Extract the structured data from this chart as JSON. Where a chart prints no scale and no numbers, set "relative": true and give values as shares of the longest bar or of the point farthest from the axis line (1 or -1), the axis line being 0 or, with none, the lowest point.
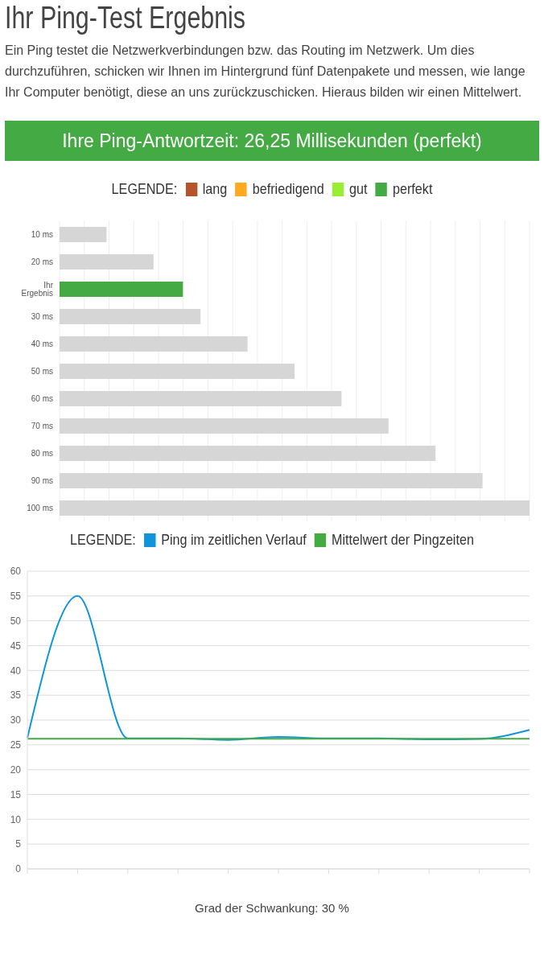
{
  "chart_data": [
    {
      "type": "bar",
      "title": "Ihr Ping-Test Ergebnis",
      "subtitle": "Ein Ping testet die Netzwerkverbindungen bzw. das Routing im Netzwerk. Um dies durchzuführen, schicken wir Ihnen im Hintergrund fünf Datenpakete und messen, wie lange Ihr Computer benötigt, diese an uns zurückzuschicken. Hieraus bilden wir einen Mittelwert.",
      "annotations": [
        "Ihre Ping-Antwortzeit: 26,25 Millisekunden (perfekt)"
      ],
      "orientation": "horizontal",
      "relative": true,
      "stacked": true,
      "grid": "x",
      "legend": "top",
      "legend_title": "LEGENDE:",
      "categories": [
        "10 ms",
        "20 ms",
        "Ihr Ergebnis",
        "30 ms",
        "40 ms",
        "50 ms",
        "60 ms",
        "70 ms",
        "80 ms",
        "90 ms",
        "100 ms"
      ],
      "series": [
        {
          "color": "#d6d6d6",
          "values": [
            0.1,
            0.2,
            null,
            0.3,
            0.4,
            0.5,
            0.6,
            0.7,
            0.8,
            0.9,
            1
          ]
        },
        {
          "name": "lang",
          "color": "#b5532a",
          "values": [
            null,
            null,
            null,
            null,
            null,
            null,
            null,
            null,
            null,
            null,
            null
          ]
        },
        {
          "name": "befriedigend",
          "color": "#ffaa22",
          "values": [
            null,
            null,
            null,
            null,
            null,
            null,
            null,
            null,
            null,
            null,
            null
          ]
        },
        {
          "name": "gut",
          "color": "#99ee33",
          "values": [
            null,
            null,
            null,
            null,
            null,
            null,
            null,
            null,
            null,
            null,
            null
          ]
        },
        {
          "name": "perfekt",
          "color": "#44aa44",
          "values": [
            null,
            null,
            0.2625,
            null,
            null,
            null,
            null,
            null,
            null,
            null,
            null
          ]
        }
      ]
    },
    {
      "type": "line",
      "legend": "top",
      "legend_title": "LEGENDE:",
      "grid": "y",
      "marker": "none",
      "line_style": "solid",
      "annotations": [
        "Grad der Schwankung: 30 %"
      ],
      "categories": [
        null,
        null,
        null,
        null,
        null,
        null,
        null,
        null,
        null,
        null,
        null
      ],
      "ylim": [
        0,
        60
      ],
      "yticks": [
        0,
        5,
        10,
        15,
        20,
        25,
        30,
        35,
        40,
        45,
        50,
        55,
        60
      ],
      "series": [
        {
          "name": "Ping im zeitlichen Verlauf",
          "color": "#0f95d9",
          "values": [
            26.4,
            55,
            26.3,
            26.3,
            26.0,
            26.6,
            26.3,
            26.3,
            26.1,
            26.2,
            28
          ]
        },
        {
          "name": "Mittelwert der Pingzeiten",
          "color": "#44aa44",
          "values": [
            26.25,
            26.25,
            26.25,
            26.25,
            26.25,
            26.25,
            26.25,
            26.25,
            26.25,
            26.25,
            26.25
          ]
        }
      ]
    }
  ]
}
